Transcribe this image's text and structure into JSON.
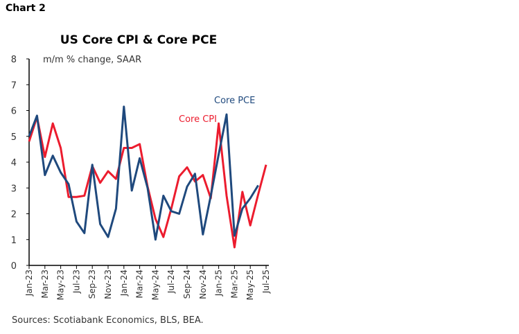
{
  "page_label": "Chart 2",
  "sources": "Sources: Scotiabank Economics, BLS, BEA.",
  "chart_data": {
    "type": "line",
    "title": "US Core CPI & Core PCE",
    "subtitle": "m/m % change, SAAR",
    "ylim": [
      0,
      8
    ],
    "yticks": [
      0,
      1,
      2,
      3,
      4,
      5,
      6,
      7,
      8
    ],
    "grid": false,
    "x": [
      "Jan-23",
      "Feb-23",
      "Mar-23",
      "Apr-23",
      "May-23",
      "Jun-23",
      "Jul-23",
      "Aug-23",
      "Sep-23",
      "Oct-23",
      "Nov-23",
      "Dec-23",
      "Jan-24",
      "Feb-24",
      "Mar-24",
      "Apr-24",
      "May-24",
      "Jun-24",
      "Jul-24",
      "Aug-24",
      "Sep-24",
      "Oct-24",
      "Nov-24",
      "Dec-24",
      "Jan-25",
      "Feb-25",
      "Mar-25",
      "Apr-25",
      "May-25",
      "Jun-25",
      "Jul-25"
    ],
    "xtick_labels": [
      "Jan-23",
      "Mar-23",
      "May-23",
      "Jul-23",
      "Sep-23",
      "Nov-23",
      "Jan-24",
      "Mar-24",
      "May-24",
      "Jul-24",
      "Sep-24",
      "Nov-24",
      "Jan-25",
      "Mar-25",
      "May-25",
      "Jul-25"
    ],
    "series": [
      {
        "name": "Core CPI",
        "color": "#ec1c2e",
        "values": [
          4.8,
          5.75,
          4.2,
          5.5,
          4.55,
          2.65,
          2.65,
          2.7,
          3.85,
          3.2,
          3.65,
          3.35,
          4.55,
          4.55,
          4.7,
          3.05,
          1.8,
          1.1,
          2.2,
          3.45,
          3.8,
          3.25,
          3.5,
          2.6,
          5.5,
          2.7,
          0.7,
          2.85,
          1.55,
          2.75,
          3.9
        ]
      },
      {
        "name": "Core PCE",
        "color": "#1f497d",
        "values": [
          5.0,
          5.8,
          3.5,
          4.25,
          3.6,
          3.15,
          1.7,
          1.25,
          3.9,
          1.6,
          1.1,
          2.2,
          6.15,
          2.9,
          4.15,
          3.0,
          1.0,
          2.7,
          2.1,
          2.0,
          3.05,
          3.55,
          1.2,
          2.7,
          4.3,
          5.85,
          1.15,
          2.2,
          2.6,
          3.1,
          null
        ]
      }
    ]
  }
}
